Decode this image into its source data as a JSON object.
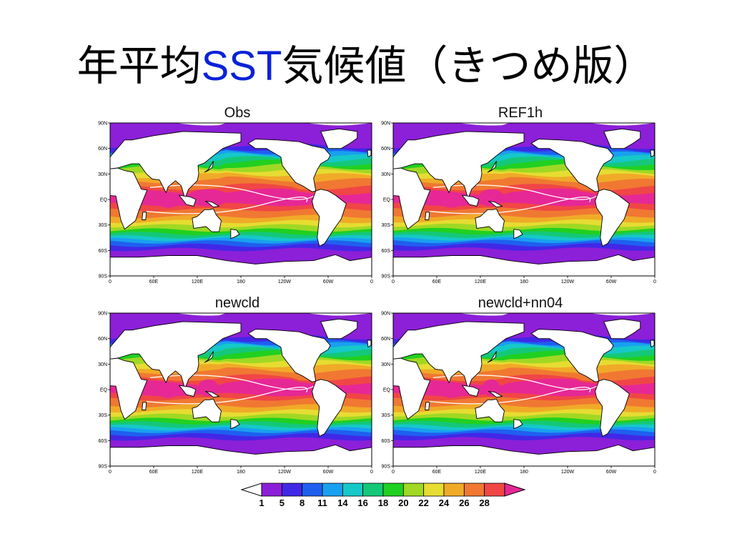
{
  "title": {
    "prefix": "年平均",
    "accent": "SST",
    "suffix": "気候値（きつめ版）"
  },
  "accent_color": "#0a22d8",
  "panels": [
    {
      "id": "obs",
      "label": "Obs"
    },
    {
      "id": "ref1h",
      "label": "REF1h"
    },
    {
      "id": "newcld",
      "label": "newcld"
    },
    {
      "id": "newcld_nn04",
      "label": "newcld+nn04"
    }
  ],
  "axes": {
    "lat_ticks": [
      "90N",
      "60N",
      "30N",
      "EQ",
      "30S",
      "60S",
      "90S"
    ],
    "lon_ticks": [
      "0",
      "60E",
      "120E",
      "180",
      "120W",
      "60W",
      "0"
    ]
  },
  "colorbar": {
    "levels": [
      "1",
      "5",
      "8",
      "11",
      "14",
      "16",
      "18",
      "20",
      "22",
      "24",
      "26",
      "28"
    ],
    "under_color": "#ffffff",
    "colors": [
      "#8c1fd8",
      "#4128e6",
      "#1f5ff0",
      "#19a0f0",
      "#16c8c8",
      "#14c878",
      "#20d020",
      "#a0d824",
      "#e6dc32",
      "#f0aa28",
      "#f07832",
      "#f04646"
    ],
    "over_color": "#e62896"
  },
  "sst_bands": [
    "#e62896",
    "#f04646",
    "#f07832",
    "#f0aa28",
    "#e6dc32",
    "#a0d824",
    "#20d020",
    "#14c878",
    "#16c8c8",
    "#19a0f0",
    "#1f5ff0",
    "#4128e6",
    "#8c1fd8"
  ]
}
